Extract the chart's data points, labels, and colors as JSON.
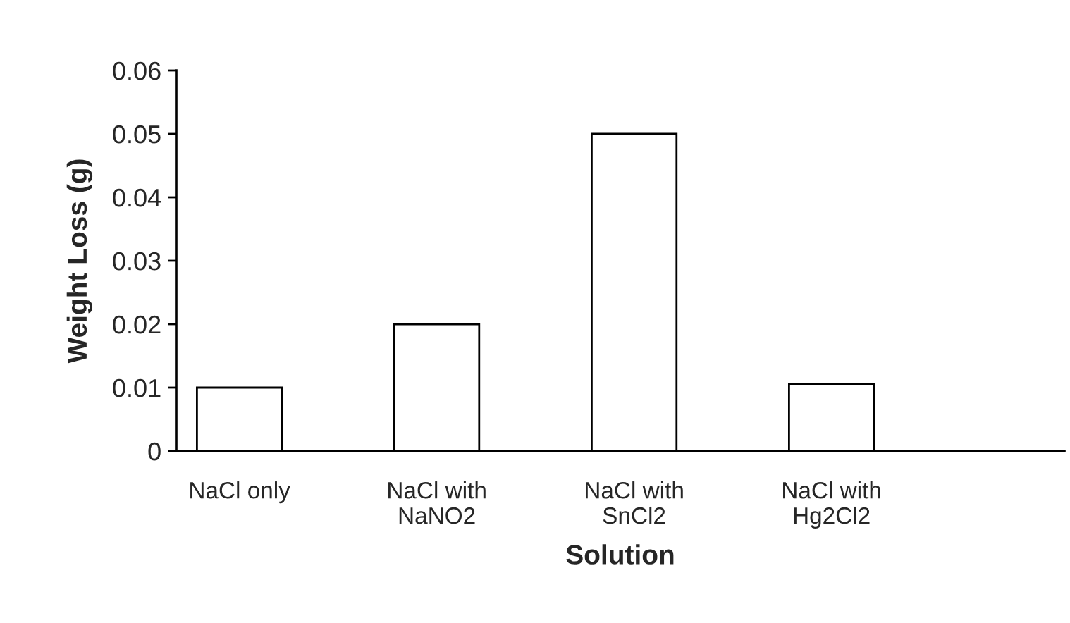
{
  "chart_data": {
    "type": "bar",
    "xlabel": "Solution",
    "ylabel": "Weight Loss (g)",
    "categories": [
      "NaCl only",
      "NaCl with\nNaNO2",
      "NaCl with\nSnCl2",
      "NaCl with\nHg2Cl2"
    ],
    "values": [
      0.01,
      0.02,
      0.05,
      0.0105
    ],
    "color": "#ffffff",
    "ylim": [
      0,
      0.06
    ],
    "yticks": [
      {
        "value": 0,
        "label": "0"
      },
      0.01,
      0.02,
      0.03,
      0.04,
      0.05,
      0.06
    ],
    "grid": false
  }
}
